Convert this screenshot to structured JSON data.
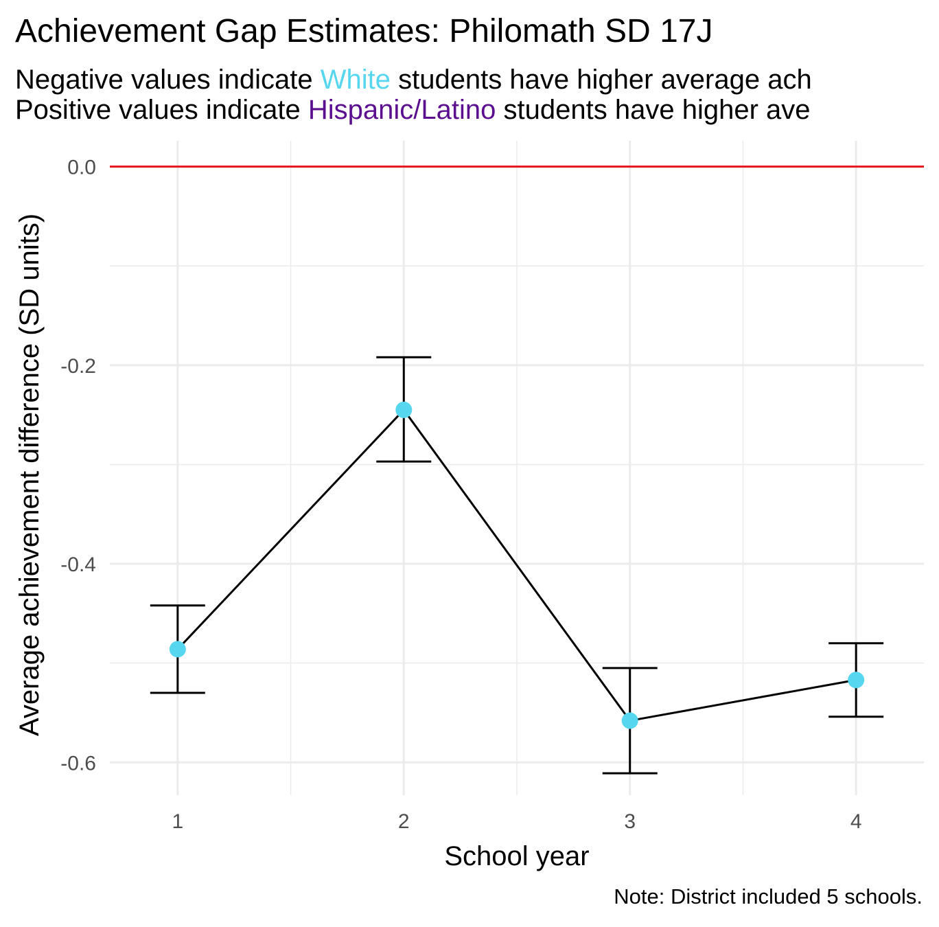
{
  "title": "Achievement Gap Estimates: Philomath SD 17J",
  "subtitle": {
    "line1": {
      "before": "Negative values indicate ",
      "group": "White",
      "after": " students have higher average ach"
    },
    "line2": {
      "before": "Positive values indicate ",
      "group": "Hispanic/Latino",
      "after": " students have higher ave"
    }
  },
  "caption": "Note: District included 5 schools.",
  "colors": {
    "white_group": "#56d7ef",
    "hispanic_group": "#5b0f8f",
    "reference_line": "#e8141b",
    "points": "#56d7ef",
    "line": "#000000",
    "grid": "#ebebeb"
  },
  "chart_data": {
    "type": "line",
    "xlabel": "School year",
    "ylabel": "Average achievement difference (SD units)",
    "x": [
      1,
      2,
      3,
      4
    ],
    "x_tick_labels": [
      "1",
      "2",
      "3",
      "4"
    ],
    "y_tick_labels": [
      "0.0",
      "-0.2",
      "-0.4",
      "-0.6"
    ],
    "y_ticks": [
      0.0,
      -0.2,
      -0.4,
      -0.6
    ],
    "xlim": [
      0.7,
      4.3
    ],
    "ylim": [
      -0.633,
      0.026
    ],
    "grid": true,
    "reference_line": 0.0,
    "series": [
      {
        "values": [
          -0.486,
          -0.245,
          -0.558,
          -0.517
        ],
        "ci_lower": [
          -0.53,
          -0.297,
          -0.611,
          -0.554
        ],
        "ci_upper": [
          -0.442,
          -0.192,
          -0.505,
          -0.48
        ]
      }
    ]
  }
}
